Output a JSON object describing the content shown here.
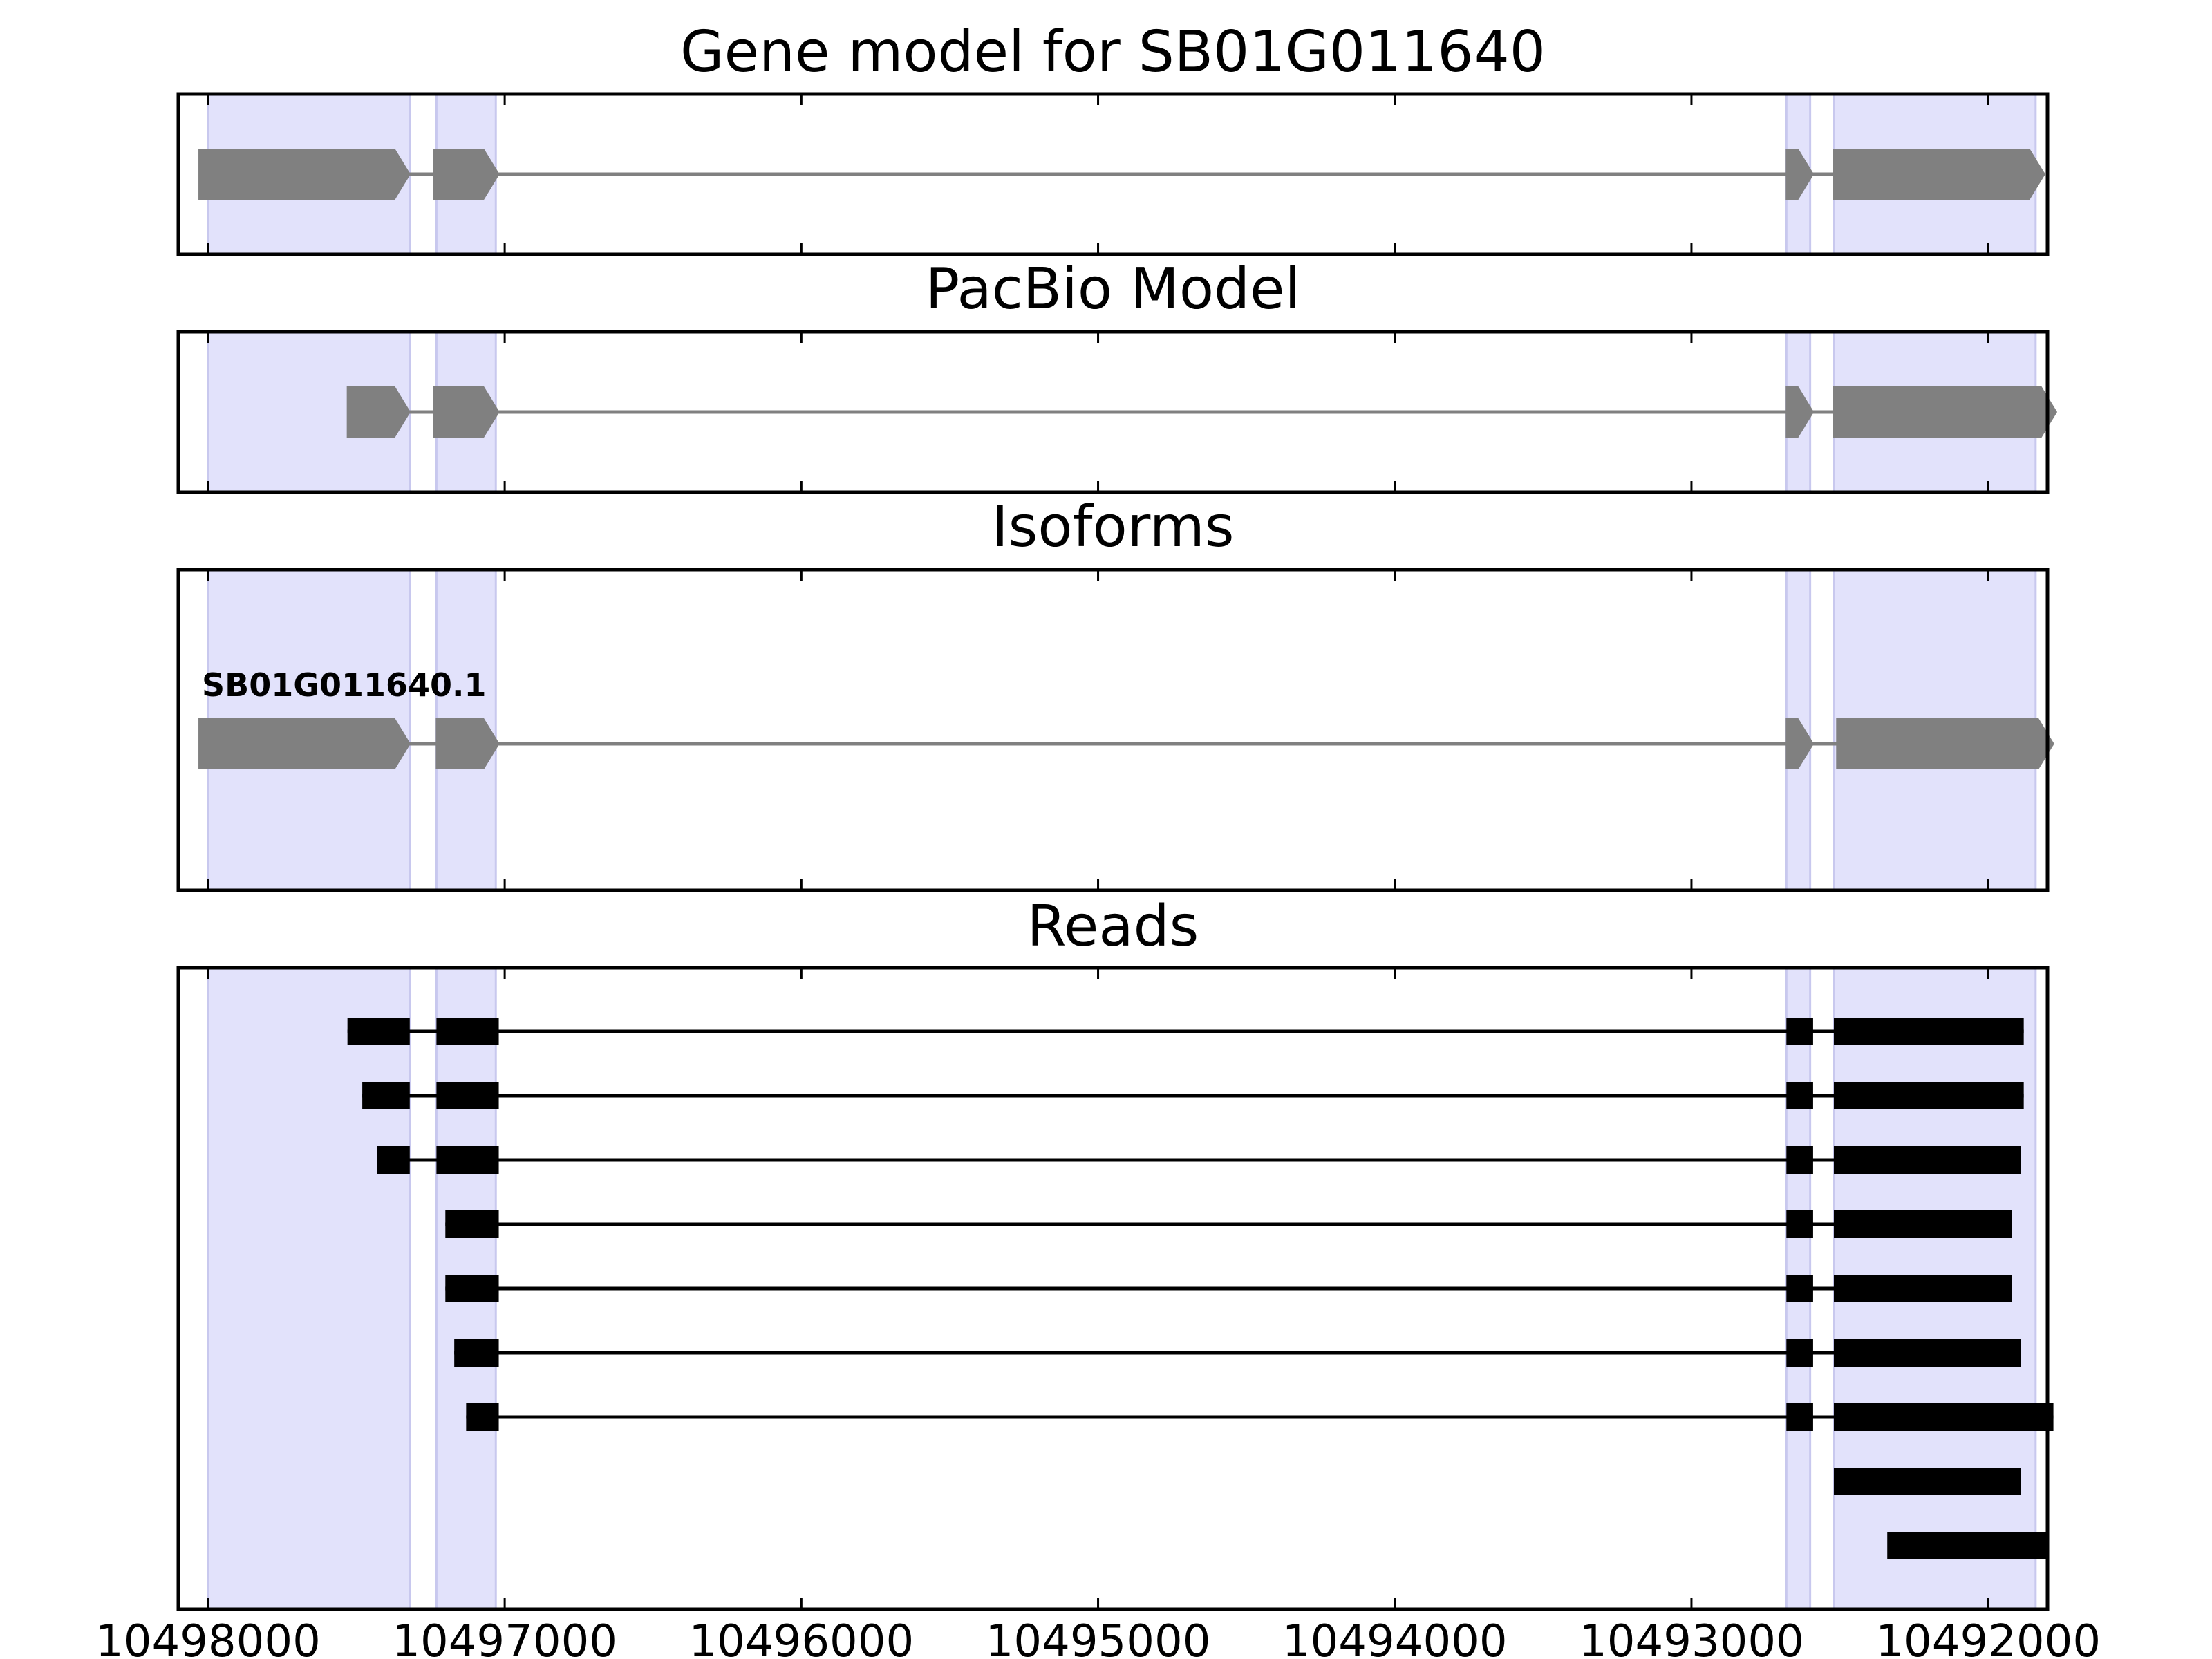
{
  "chart_data": {
    "type": "gene-track",
    "x_axis": {
      "range": [
        10498100,
        10491800
      ],
      "inverted": true,
      "ticks": [
        10498000,
        10497000,
        10496000,
        10495000,
        10494000,
        10493000,
        10492000
      ],
      "tick_labels": [
        "10498000",
        "10497000",
        "10496000",
        "10495000",
        "10494000",
        "10493000",
        "10492000"
      ]
    },
    "exon_highlights": [
      [
        10498000,
        10497320
      ],
      [
        10497230,
        10497030
      ],
      [
        10492680,
        10492600
      ],
      [
        10492520,
        10491840
      ]
    ],
    "panels": [
      {
        "title": "Gene model for SB01G011640",
        "style": "gene",
        "color": "#808080",
        "models": [
          {
            "label": "",
            "exons": [
              [
                10498030,
                10497320
              ],
              [
                10497240,
                10497020
              ],
              [
                10492680,
                10492590
              ],
              [
                10492520,
                10491810
              ]
            ]
          }
        ]
      },
      {
        "title": "PacBio Model",
        "style": "gene",
        "color": "#808080",
        "models": [
          {
            "label": "",
            "exons": [
              [
                10497530,
                10497320
              ],
              [
                10497240,
                10497020
              ],
              [
                10492680,
                10492590
              ],
              [
                10492520,
                10491770
              ]
            ]
          }
        ]
      },
      {
        "title": "Isoforms",
        "style": "gene",
        "color": "#808080",
        "models": [
          {
            "label": "SB01G011640.1",
            "exons": [
              [
                10498030,
                10497320
              ],
              [
                10497230,
                10497020
              ],
              [
                10492680,
                10492590
              ],
              [
                10492510,
                10491780
              ]
            ]
          }
        ]
      },
      {
        "title": "Reads",
        "style": "reads",
        "color": "#000000",
        "reads": [
          [
            [
              10497530,
              10497320
            ],
            [
              10497230,
              10497020
            ],
            [
              10492680,
              10492590
            ],
            [
              10492520,
              10491880
            ]
          ],
          [
            [
              10497480,
              10497320
            ],
            [
              10497230,
              10497020
            ],
            [
              10492680,
              10492590
            ],
            [
              10492520,
              10491880
            ]
          ],
          [
            [
              10497430,
              10497320
            ],
            [
              10497230,
              10497020
            ],
            [
              10492680,
              10492590
            ],
            [
              10492520,
              10491890
            ]
          ],
          [
            [
              10497200,
              10497020
            ],
            [
              10492680,
              10492590
            ],
            [
              10492520,
              10491920
            ]
          ],
          [
            [
              10497200,
              10497020
            ],
            [
              10492680,
              10492590
            ],
            [
              10492520,
              10491920
            ]
          ],
          [
            [
              10497170,
              10497020
            ],
            [
              10492680,
              10492590
            ],
            [
              10492520,
              10491890
            ]
          ],
          [
            [
              10497130,
              10497020
            ],
            [
              10492680,
              10492590
            ],
            [
              10492520,
              10491780
            ]
          ],
          [
            [
              10492520,
              10491890
            ]
          ],
          [
            [
              10492340,
              10491800
            ]
          ]
        ]
      }
    ]
  }
}
